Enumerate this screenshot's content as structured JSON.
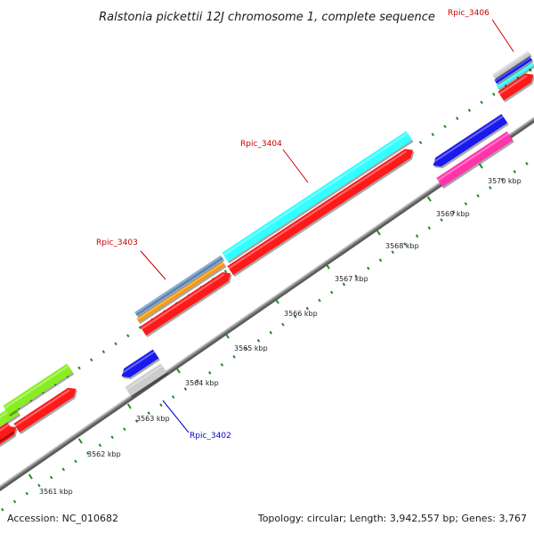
{
  "title": "Ralstonia pickettii 12J chromosome 1, complete sequence",
  "footer": {
    "accession": "Accession: NC_010682",
    "topology": "Topology: circular; Length: 3,942,557 bp; Genes: 3,767"
  },
  "ticks": [
    "3561 kbp",
    "3562 kbp",
    "3563 kbp",
    "3564 kbp",
    "3565 kbp",
    "3566 kbp",
    "3567 kbp",
    "3568 kbp",
    "3569 kbp",
    "3570 kbp"
  ],
  "gene_labels": {
    "rpic_3402": {
      "text": "Rpic_3402",
      "color": "#0000cc"
    },
    "rpic_3403": {
      "text": "Rpic_3403",
      "color": "#cc0000"
    },
    "rpic_3404": {
      "text": "Rpic_3404",
      "color": "#cc0000"
    },
    "rpic_3406": {
      "text": "Rpic_3406",
      "color": "#cc0000"
    }
  },
  "colors": {
    "cds_red": "#ff1a1a",
    "cyan": "#33ffff",
    "blue": "#1a1aee",
    "magenta": "#ff33aa",
    "steel_blue": "#5588bb",
    "orange": "#ff9900",
    "green": "#88ee22",
    "grey": "#cccccc",
    "backbone": "#8a8a8a",
    "tick_green": "#228822"
  }
}
